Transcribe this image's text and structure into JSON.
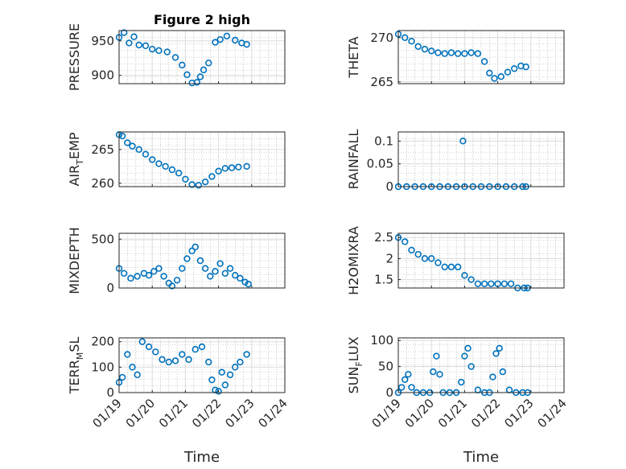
{
  "figure": {
    "title": "Figure 2 high",
    "marker_color": "#0072BD"
  },
  "chart_data": [
    {
      "type": "scatter",
      "ylabel": "PRESSURE",
      "xlabel": "",
      "xlim": [
        "01/19",
        "01/24"
      ],
      "ylim": [
        888,
        965
      ],
      "yticks": [
        900,
        950
      ],
      "xticks": [
        "01/19",
        "01/20",
        "01/21",
        "01/22",
        "01/23",
        "01/24"
      ],
      "grid": true,
      "series": [
        {
          "x": [
            0.0,
            0.15,
            0.3,
            0.45,
            0.6,
            0.8,
            1.0,
            1.2,
            1.45,
            1.7,
            1.9,
            2.05,
            2.2,
            2.35,
            2.45,
            2.55,
            2.7,
            2.9,
            3.05,
            3.25,
            3.5,
            3.7,
            3.85
          ],
          "y": [
            955,
            962,
            947,
            956,
            944,
            943,
            938,
            936,
            934,
            926,
            915,
            901,
            889,
            890,
            898,
            908,
            918,
            948,
            952,
            957,
            951,
            947,
            945
          ]
        }
      ]
    },
    {
      "type": "scatter",
      "ylabel": "THETA",
      "xlabel": "",
      "xlim": [
        "01/19",
        "01/24"
      ],
      "ylim": [
        264.8,
        270.8
      ],
      "yticks": [
        265,
        270
      ],
      "xticks": [
        "01/19",
        "01/20",
        "01/21",
        "01/22",
        "01/23",
        "01/24"
      ],
      "grid": true,
      "series": [
        {
          "x": [
            0.0,
            0.2,
            0.4,
            0.6,
            0.8,
            1.0,
            1.2,
            1.4,
            1.6,
            1.8,
            2.0,
            2.2,
            2.4,
            2.6,
            2.75,
            2.9,
            3.1,
            3.3,
            3.5,
            3.7,
            3.85
          ],
          "y": [
            270.4,
            270.0,
            269.6,
            269.0,
            268.7,
            268.5,
            268.3,
            268.2,
            268.3,
            268.2,
            268.2,
            268.3,
            268.2,
            267.3,
            266.0,
            265.4,
            265.6,
            266.1,
            266.5,
            266.8,
            266.7
          ]
        }
      ]
    },
    {
      "type": "scatter",
      "ylabel": "AIR_TEMP",
      "xlabel": "",
      "xlim": [
        "01/19",
        "01/24"
      ],
      "ylim": [
        259.5,
        267.6
      ],
      "yticks": [
        260,
        265
      ],
      "xticks": [
        "01/19",
        "01/20",
        "01/21",
        "01/22",
        "01/23",
        "01/24"
      ],
      "grid": true,
      "series": [
        {
          "x": [
            0.0,
            0.1,
            0.25,
            0.4,
            0.6,
            0.8,
            1.0,
            1.2,
            1.4,
            1.6,
            1.8,
            2.0,
            2.2,
            2.4,
            2.6,
            2.8,
            3.0,
            3.2,
            3.4,
            3.6,
            3.85
          ],
          "y": [
            267.2,
            267.0,
            266.0,
            265.5,
            265.0,
            264.3,
            263.5,
            262.9,
            262.5,
            262.0,
            261.5,
            260.6,
            259.8,
            259.7,
            260.2,
            261.0,
            261.8,
            262.2,
            262.3,
            262.4,
            262.5
          ]
        }
      ]
    },
    {
      "type": "scatter",
      "ylabel": "RAINFALL",
      "xlabel": "",
      "xlim": [
        "01/19",
        "01/24"
      ],
      "ylim": [
        0,
        0.12
      ],
      "yticks": [
        0,
        0.05,
        0.1
      ],
      "xticks": [
        "01/19",
        "01/20",
        "01/21",
        "01/22",
        "01/23",
        "01/24"
      ],
      "grid": true,
      "series": [
        {
          "x": [
            0.0,
            0.25,
            0.5,
            0.75,
            1.0,
            1.25,
            1.5,
            1.75,
            1.95,
            2.0,
            2.25,
            2.5,
            2.75,
            3.0,
            3.25,
            3.5,
            3.75,
            3.85
          ],
          "y": [
            0,
            0,
            0,
            0,
            0,
            0,
            0,
            0,
            0.1,
            0,
            0,
            0,
            0,
            0,
            0,
            0,
            0,
            0
          ]
        }
      ]
    },
    {
      "type": "scatter",
      "ylabel": "MIXDEPTH",
      "xlabel": "",
      "xlim": [
        "01/19",
        "01/24"
      ],
      "ylim": [
        0,
        560
      ],
      "yticks": [
        0,
        500
      ],
      "xticks": [
        "01/19",
        "01/20",
        "01/21",
        "01/22",
        "01/23",
        "01/24"
      ],
      "grid": true,
      "series": [
        {
          "x": [
            0.0,
            0.15,
            0.35,
            0.55,
            0.75,
            0.9,
            1.05,
            1.2,
            1.35,
            1.5,
            1.6,
            1.75,
            1.9,
            2.05,
            2.2,
            2.3,
            2.45,
            2.6,
            2.75,
            2.9,
            3.05,
            3.2,
            3.35,
            3.5,
            3.65,
            3.8,
            3.9
          ],
          "y": [
            200,
            150,
            100,
            120,
            150,
            130,
            170,
            200,
            120,
            50,
            20,
            80,
            200,
            300,
            380,
            420,
            280,
            200,
            120,
            170,
            250,
            150,
            200,
            130,
            100,
            60,
            40
          ]
        }
      ]
    },
    {
      "type": "scatter",
      "ylabel": "H2OMIXRA",
      "xlabel": "",
      "xlim": [
        "01/19",
        "01/24"
      ],
      "ylim": [
        1.3,
        2.6
      ],
      "yticks": [
        1.5,
        2,
        2.5
      ],
      "xticks": [
        "01/19",
        "01/20",
        "01/21",
        "01/22",
        "01/23",
        "01/24"
      ],
      "grid": true,
      "series": [
        {
          "x": [
            0.0,
            0.2,
            0.4,
            0.6,
            0.8,
            1.0,
            1.2,
            1.4,
            1.6,
            1.8,
            2.0,
            2.2,
            2.4,
            2.6,
            2.8,
            3.0,
            3.2,
            3.4,
            3.6,
            3.8,
            3.9
          ],
          "y": [
            2.5,
            2.4,
            2.2,
            2.1,
            2.0,
            2.0,
            1.9,
            1.8,
            1.8,
            1.8,
            1.6,
            1.5,
            1.4,
            1.4,
            1.4,
            1.4,
            1.4,
            1.4,
            1.3,
            1.3,
            1.3
          ]
        }
      ]
    },
    {
      "type": "scatter",
      "ylabel": "TERR_MSL",
      "xlabel": "Time",
      "xlim": [
        "01/19",
        "01/24"
      ],
      "ylim": [
        0,
        215
      ],
      "yticks": [
        0,
        100,
        200
      ],
      "xticks": [
        "01/19",
        "01/20",
        "01/21",
        "01/22",
        "01/23",
        "01/24"
      ],
      "grid": true,
      "series": [
        {
          "x": [
            0.0,
            0.1,
            0.25,
            0.4,
            0.55,
            0.7,
            0.9,
            1.1,
            1.3,
            1.5,
            1.7,
            1.9,
            2.1,
            2.3,
            2.5,
            2.7,
            2.8,
            2.9,
            3.0,
            3.1,
            3.2,
            3.35,
            3.5,
            3.65,
            3.85
          ],
          "y": [
            40,
            60,
            150,
            100,
            70,
            200,
            180,
            160,
            130,
            120,
            125,
            150,
            130,
            170,
            180,
            120,
            50,
            10,
            5,
            80,
            30,
            70,
            100,
            120,
            150
          ]
        }
      ]
    },
    {
      "type": "scatter",
      "ylabel": "SUN_FLUX",
      "xlabel": "Time",
      "xlim": [
        "01/19",
        "01/24"
      ],
      "ylim": [
        0,
        105
      ],
      "yticks": [
        0,
        50,
        100
      ],
      "xticks": [
        "01/19",
        "01/20",
        "01/21",
        "01/22",
        "01/23",
        "01/24"
      ],
      "grid": true,
      "series": [
        {
          "x": [
            0.0,
            0.1,
            0.2,
            0.3,
            0.4,
            0.55,
            0.75,
            0.95,
            1.05,
            1.15,
            1.25,
            1.35,
            1.55,
            1.75,
            1.9,
            2.0,
            2.1,
            2.2,
            2.4,
            2.6,
            2.75,
            2.85,
            2.95,
            3.05,
            3.15,
            3.35,
            3.55,
            3.75,
            3.9
          ],
          "y": [
            0,
            10,
            25,
            35,
            10,
            0,
            0,
            0,
            40,
            70,
            35,
            0,
            0,
            0,
            20,
            70,
            85,
            50,
            5,
            0,
            0,
            30,
            75,
            85,
            40,
            5,
            0,
            0,
            0
          ]
        }
      ]
    }
  ]
}
